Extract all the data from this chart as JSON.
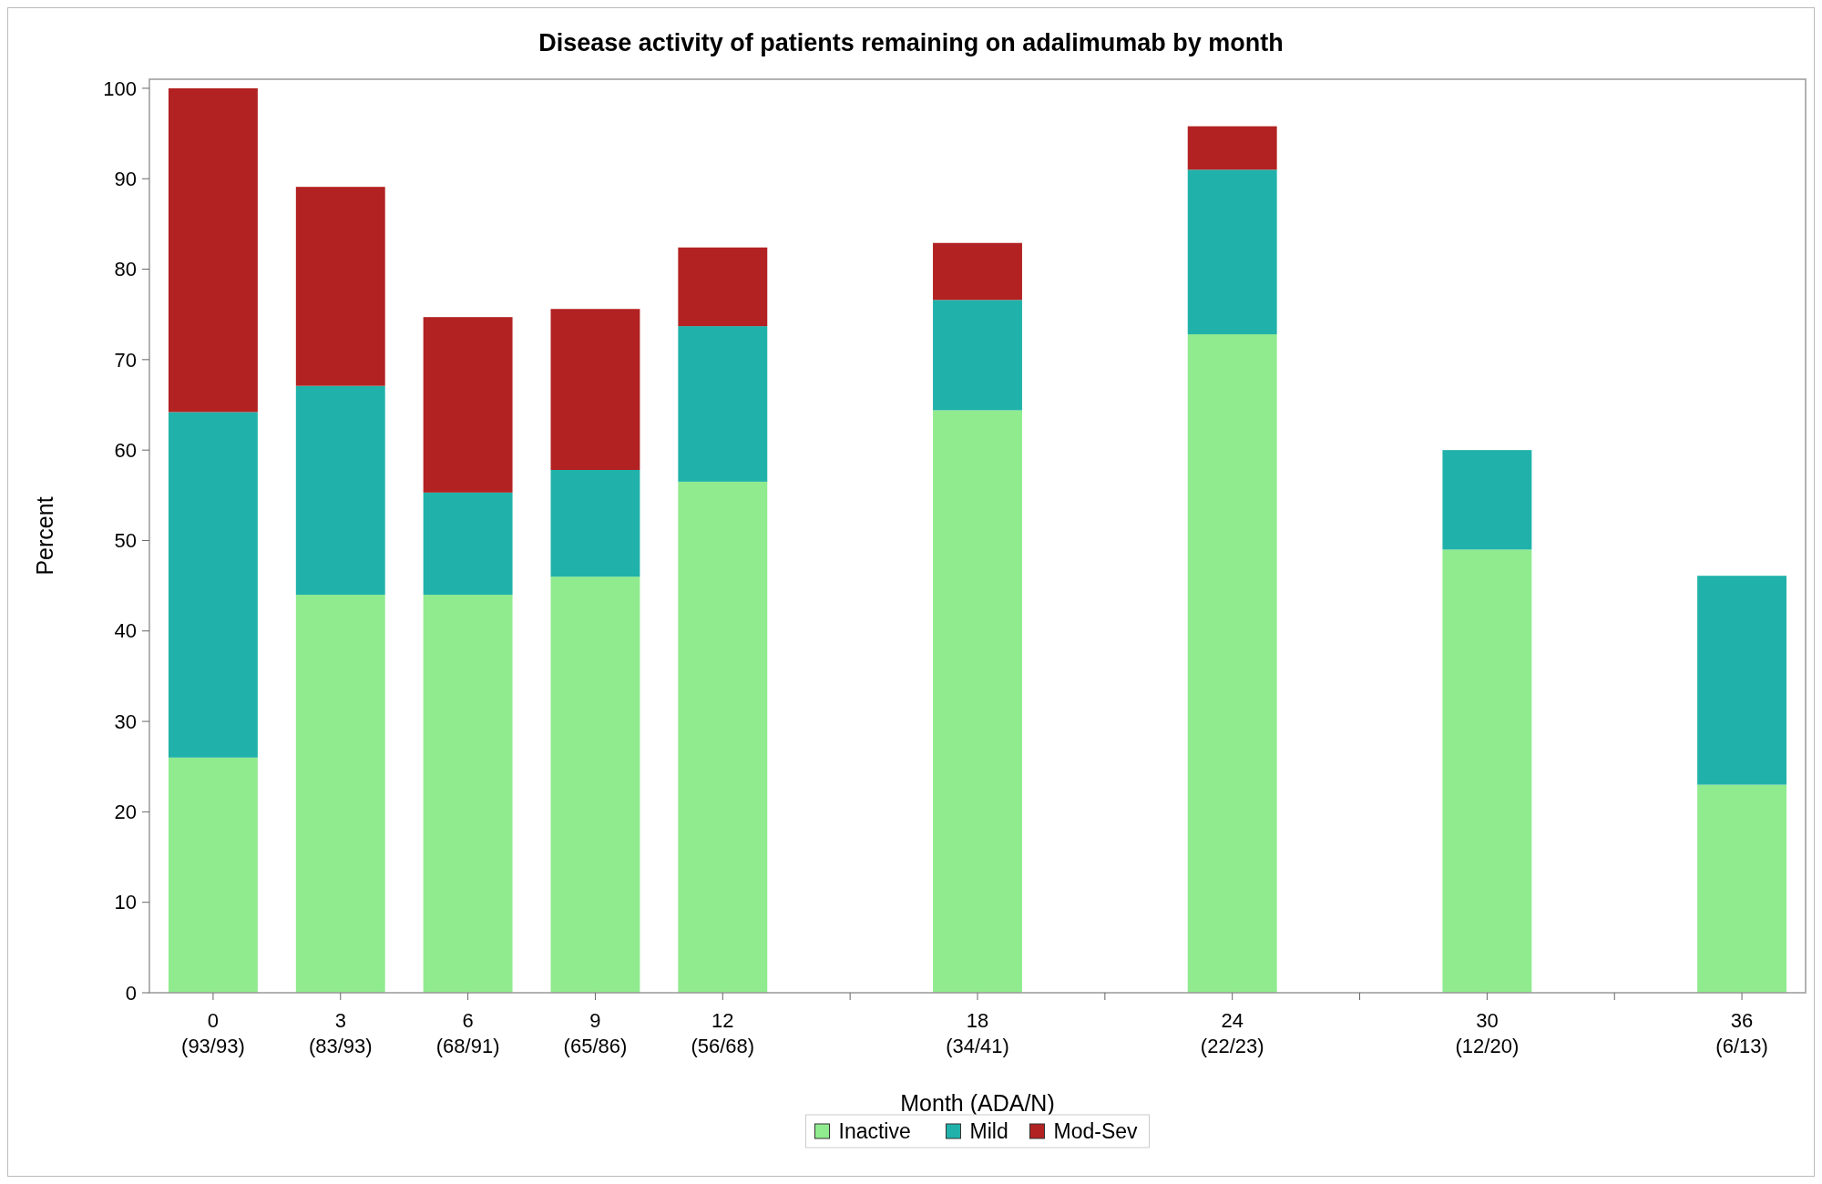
{
  "chart_data": {
    "type": "bar",
    "title": "Disease activity of patients remaining on adalimumab by month",
    "xlabel": "Month (ADA/N)",
    "ylabel": "Percent",
    "categories": [
      "0\n(93/93)",
      "3\n(83/93)",
      "6\n(68/91)",
      "9\n(65/86)",
      "12\n(56/68)",
      null,
      "18\n(34/41)",
      null,
      "24\n(22/23)",
      null,
      "30\n(12/20)",
      null,
      "36\n(6/13)"
    ],
    "stacked": true,
    "series": [
      {
        "name": "Inactive",
        "color": "#90eb8e",
        "values": [
          26,
          44,
          44,
          46,
          56.5,
          null,
          64.4,
          null,
          72.8,
          null,
          49,
          null,
          23
        ]
      },
      {
        "name": "Mild",
        "color": "#20b2aa",
        "values": [
          38.2,
          23.1,
          11.3,
          11.8,
          17.2,
          null,
          12.2,
          null,
          18.2,
          null,
          11,
          null,
          23.1
        ]
      },
      {
        "name": "Mod-Sev",
        "color": "#b22222",
        "values": [
          35.8,
          22,
          19.4,
          17.8,
          8.7,
          null,
          6.3,
          null,
          4.8,
          null,
          null,
          null,
          null
        ]
      }
    ],
    "ylim": [
      0,
      101
    ],
    "yticks": [
      0,
      10,
      20,
      30,
      40,
      50,
      60,
      70,
      80,
      90,
      100
    ],
    "grid": false,
    "legend": "bottom"
  }
}
